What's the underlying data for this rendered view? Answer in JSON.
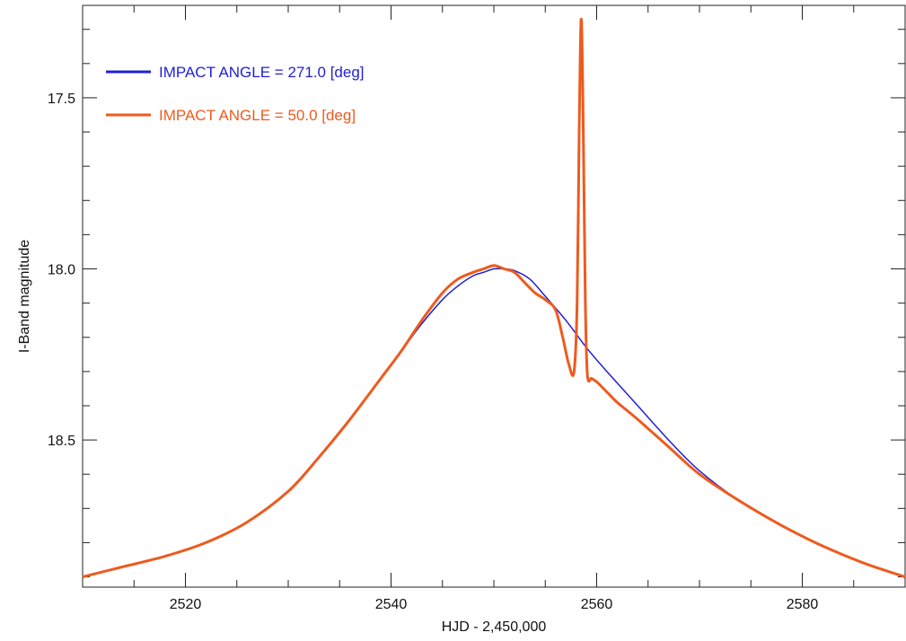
{
  "chart_data": {
    "type": "line",
    "title": "",
    "xlabel": "HJD - 2,450,000",
    "ylabel": "I-Band  magnitude",
    "xlim": [
      2510,
      2590
    ],
    "ylim": [
      18.93,
      17.23
    ],
    "y_inverted": true,
    "grid": false,
    "legend_position": "top-left",
    "x_ticks": [
      2520,
      2540,
      2560,
      2580
    ],
    "x_tick_labels": [
      "2520",
      "2540",
      "2560",
      "2580"
    ],
    "y_ticks": [
      17.5,
      18.0,
      18.5
    ],
    "y_tick_labels": [
      "17.5",
      "18.0",
      "18.5"
    ],
    "x_minor_step": 5,
    "y_minor_step": 0.1,
    "series": [
      {
        "name": "IMPACT ANGLE = 271.0  [deg]",
        "color": "#1f1fd6",
        "x": [
          2510,
          2514,
          2518,
          2522,
          2526,
          2530,
          2533,
          2536,
          2539,
          2541,
          2543,
          2545,
          2546.5,
          2548,
          2549,
          2550,
          2551,
          2552,
          2553.5,
          2555,
          2557,
          2559,
          2561,
          2564,
          2567,
          2570,
          2574,
          2578,
          2582,
          2586,
          2590
        ],
        "y": [
          18.9,
          18.87,
          18.84,
          18.8,
          18.74,
          18.65,
          18.55,
          18.44,
          18.32,
          18.24,
          18.16,
          18.09,
          18.05,
          18.02,
          18.01,
          18.0,
          18.0,
          18.005,
          18.03,
          18.08,
          18.15,
          18.23,
          18.3,
          18.4,
          18.5,
          18.59,
          18.68,
          18.75,
          18.81,
          18.86,
          18.9
        ]
      },
      {
        "name": "IMPACT ANGLE = 50.0  [deg]",
        "color": "#ee5a1e",
        "x": [
          2510,
          2514,
          2518,
          2522,
          2526,
          2530,
          2533,
          2536,
          2539,
          2541,
          2543,
          2545,
          2546.5,
          2548,
          2549,
          2550,
          2551,
          2552,
          2553,
          2554,
          2555,
          2556,
          2556.7,
          2557.3,
          2557.8,
          2558.1,
          2558.3,
          2558.5,
          2558.7,
          2558.9,
          2559.1,
          2559.5,
          2560,
          2561,
          2562,
          2564,
          2567,
          2570,
          2574,
          2578,
          2582,
          2586,
          2590
        ],
        "y": [
          18.9,
          18.87,
          18.84,
          18.8,
          18.74,
          18.65,
          18.55,
          18.44,
          18.32,
          18.24,
          18.15,
          18.07,
          18.03,
          18.01,
          18.0,
          17.99,
          18.0,
          18.01,
          18.04,
          18.07,
          18.09,
          18.12,
          18.2,
          18.28,
          18.3,
          18.1,
          17.6,
          17.27,
          17.6,
          18.1,
          18.31,
          18.32,
          18.33,
          18.36,
          18.39,
          18.44,
          18.52,
          18.6,
          18.68,
          18.75,
          18.81,
          18.86,
          18.9
        ]
      }
    ]
  }
}
